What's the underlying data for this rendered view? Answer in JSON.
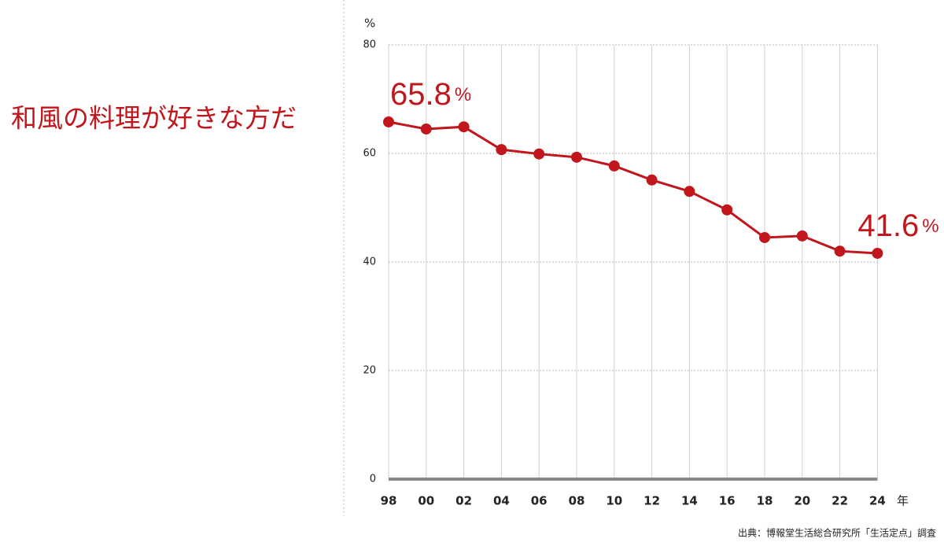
{
  "chart_data": {
    "type": "line",
    "title": "和風の料理が好きな方だ",
    "y_label": "%",
    "x_label": "年",
    "source": "出典：博報堂生活総合研究所「生活定点」調査",
    "categories": [
      "98",
      "00",
      "02",
      "04",
      "06",
      "08",
      "10",
      "12",
      "14",
      "16",
      "18",
      "20",
      "22",
      "24"
    ],
    "series": [
      {
        "name": "和風の料理が好きな方だ",
        "color": "#c0161c",
        "values": [
          65.8,
          64.5,
          64.9,
          60.7,
          59.9,
          59.3,
          57.7,
          55.1,
          53.0,
          49.6,
          44.5,
          44.8,
          42.0,
          41.6
        ],
        "value_labels": [
          "65.8",
          null,
          null,
          null,
          null,
          null,
          null,
          null,
          null,
          null,
          null,
          null,
          null,
          "41.6"
        ]
      }
    ],
    "ylim": [
      0,
      80
    ],
    "yticks": [
      0,
      20,
      40,
      60,
      80
    ],
    "grid": true
  }
}
